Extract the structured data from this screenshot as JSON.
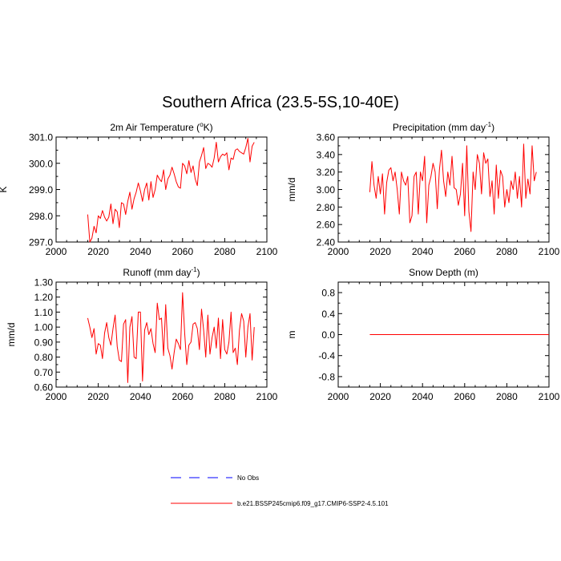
{
  "figure": {
    "title": "Southern Africa (23.5-5S,10-40E)"
  },
  "legend": {
    "entries": [
      {
        "label": "No Obs",
        "color": "#0000ff",
        "style": "dashed"
      },
      {
        "label": "b.e21.BSSP245cmip6.f09_g17.CMIP6-SSP2-4.5.101",
        "color": "#ff0000",
        "style": "solid"
      }
    ]
  },
  "chart_data": [
    {
      "type": "line",
      "title_main": "2m Air Temperature (",
      "title_sup": "o",
      "title_end": "K)",
      "ylabel": "K",
      "xlabel": "",
      "xlim": [
        2000,
        2100
      ],
      "ylim": [
        297.0,
        301.0
      ],
      "xticks": [
        "2000",
        "2020",
        "2040",
        "2060",
        "2080",
        "2100"
      ],
      "yticks": [
        "297.0",
        "298.0",
        "299.0",
        "300.0",
        "301.0"
      ],
      "series": [
        {
          "name": "b.e21.BSSP245cmip6.f09_g17.CMIP6-SSP2-4.5.101",
          "color": "#ff0000",
          "x_start": 2015,
          "values": [
            298.05,
            297.0,
            297.15,
            297.6,
            297.35,
            298.0,
            297.9,
            298.2,
            297.95,
            297.8,
            297.95,
            298.45,
            297.7,
            298.25,
            298.15,
            297.55,
            298.5,
            298.45,
            298.05,
            298.55,
            298.9,
            298.25,
            298.65,
            298.9,
            299.25,
            298.95,
            298.55,
            299.0,
            299.25,
            298.6,
            299.3,
            298.7,
            299.0,
            299.55,
            299.4,
            299.3,
            299.75,
            299.0,
            299.4,
            299.55,
            299.85,
            299.6,
            299.3,
            299.1,
            299.05,
            300.0,
            299.9,
            299.6,
            300.1,
            299.65,
            299.9,
            299.4,
            299.15,
            300.05,
            300.3,
            300.6,
            299.8,
            300.0,
            299.95,
            299.85,
            300.2,
            300.8,
            300.05,
            300.25,
            300.35,
            300.3,
            300.4,
            299.75,
            300.2,
            300.15,
            300.5,
            300.55,
            300.45,
            300.4,
            300.35,
            300.6,
            300.95,
            300.05,
            300.65,
            300.8
          ]
        }
      ]
    },
    {
      "type": "line",
      "title_main": "Precipitation (mm day",
      "title_sup": "-1",
      "title_end": ")",
      "ylabel": "mm/d",
      "xlabel": "",
      "xlim": [
        2000,
        2100
      ],
      "ylim": [
        2.4,
        3.6
      ],
      "xticks": [
        "2000",
        "2020",
        "2040",
        "2060",
        "2080",
        "2100"
      ],
      "yticks": [
        "2.40",
        "2.60",
        "2.80",
        "3.00",
        "3.20",
        "3.40",
        "3.60"
      ],
      "series": [
        {
          "name": "b.e21.BSSP245cmip6.f09_g17.CMIP6-SSP2-4.5.101",
          "color": "#ff0000",
          "x_start": 2015,
          "values": [
            2.97,
            3.32,
            3.05,
            2.9,
            3.15,
            2.95,
            3.18,
            2.72,
            3.08,
            3.22,
            3.25,
            3.1,
            3.2,
            3.0,
            2.72,
            3.2,
            3.1,
            3.05,
            3.15,
            2.62,
            2.7,
            3.15,
            3.2,
            2.72,
            3.2,
            3.1,
            3.38,
            2.62,
            3.05,
            3.15,
            3.3,
            3.2,
            2.78,
            3.22,
            3.45,
            3.1,
            2.92,
            3.2,
            3.05,
            3.38,
            3.02,
            3.0,
            2.82,
            2.95,
            3.3,
            2.7,
            3.5,
            2.75,
            2.52,
            3.2,
            3.0,
            3.4,
            3.3,
            2.95,
            3.42,
            3.3,
            3.35,
            2.92,
            3.1,
            2.72,
            3.28,
            2.9,
            3.22,
            3.15,
            2.8,
            3.0,
            2.85,
            3.1,
            3.0,
            3.2,
            2.9,
            3.15,
            2.8,
            3.52,
            2.9,
            3.12,
            2.95,
            3.5,
            3.1,
            3.2
          ]
        }
      ]
    },
    {
      "type": "line",
      "title_main": "Runoff (mm day",
      "title_sup": "-1",
      "title_end": ")",
      "ylabel": "mm/d",
      "xlabel": "",
      "xlim": [
        2000,
        2100
      ],
      "ylim": [
        0.6,
        1.3
      ],
      "xticks": [
        "2000",
        "2020",
        "2040",
        "2060",
        "2080",
        "2100"
      ],
      "yticks": [
        "0.60",
        "0.70",
        "0.80",
        "0.90",
        "1.00",
        "1.10",
        "1.20",
        "1.30"
      ],
      "series": [
        {
          "name": "b.e21.BSSP245cmip6.f09_g17.CMIP6-SSP2-4.5.101",
          "color": "#ff0000",
          "x_start": 2015,
          "values": [
            1.06,
            1.0,
            0.93,
            0.99,
            0.82,
            0.89,
            0.88,
            0.79,
            0.96,
            1.03,
            0.93,
            0.88,
            0.99,
            1.08,
            0.87,
            0.78,
            0.77,
            1.02,
            1.05,
            0.63,
            1.0,
            1.07,
            0.8,
            0.79,
            1.1,
            1.1,
            0.64,
            0.98,
            1.03,
            0.95,
            0.99,
            0.89,
            0.83,
            1.16,
            1.05,
            1.06,
            0.81,
            1.15,
            0.86,
            0.81,
            0.72,
            0.83,
            0.92,
            0.89,
            0.85,
            1.23,
            0.96,
            0.75,
            0.88,
            0.9,
            1.02,
            1.03,
            0.99,
            0.85,
            1.12,
            0.98,
            0.8,
            1.08,
            0.82,
            0.93,
            1.0,
            0.86,
            1.06,
            0.79,
            1.05,
            0.85,
            0.82,
            0.9,
            1.1,
            0.83,
            0.86,
            0.75,
            0.98,
            1.09,
            1.04,
            0.8,
            1.0,
            1.09,
            0.78,
            1.0
          ]
        }
      ]
    },
    {
      "type": "line",
      "title_main": "Snow Depth (m)",
      "title_sup": "",
      "title_end": "",
      "ylabel": "m",
      "xlabel": "",
      "xlim": [
        2000,
        2100
      ],
      "ylim": [
        -1.0,
        1.0
      ],
      "xticks": [
        "2000",
        "2020",
        "2040",
        "2060",
        "2080",
        "2100"
      ],
      "yticks": [
        "-0.8",
        "-0.4",
        "0.0",
        "0.4",
        "0.8"
      ],
      "series": [
        {
          "name": "b.e21.BSSP245cmip6.f09_g17.CMIP6-SSP2-4.5.101",
          "color": "#ff0000",
          "x_start": 2015,
          "values": [
            0.0,
            0.0,
            0.0,
            0.0,
            0.0,
            0.0,
            0.0,
            0.0,
            0.0,
            0.0,
            0.0,
            0.0,
            0.0,
            0.0,
            0.0,
            0.0,
            0.0,
            0.0,
            0.0,
            0.0,
            0.0,
            0.0,
            0.0,
            0.0,
            0.0,
            0.0,
            0.0,
            0.0,
            0.0,
            0.0,
            0.0,
            0.0,
            0.0,
            0.0,
            0.0,
            0.0,
            0.0,
            0.0,
            0.0,
            0.0,
            0.0,
            0.0,
            0.0,
            0.0,
            0.0,
            0.0,
            0.0,
            0.0,
            0.0,
            0.0,
            0.0,
            0.0,
            0.0,
            0.0,
            0.0,
            0.0,
            0.0,
            0.0,
            0.0,
            0.0,
            0.0,
            0.0,
            0.0,
            0.0,
            0.0,
            0.0,
            0.0,
            0.0,
            0.0,
            0.0,
            0.0,
            0.0,
            0.0,
            0.0,
            0.0,
            0.0,
            0.0,
            0.0,
            0.0,
            0.0,
            0.0,
            0.0,
            0.0,
            0.0,
            0.0,
            0.0
          ]
        }
      ]
    }
  ]
}
